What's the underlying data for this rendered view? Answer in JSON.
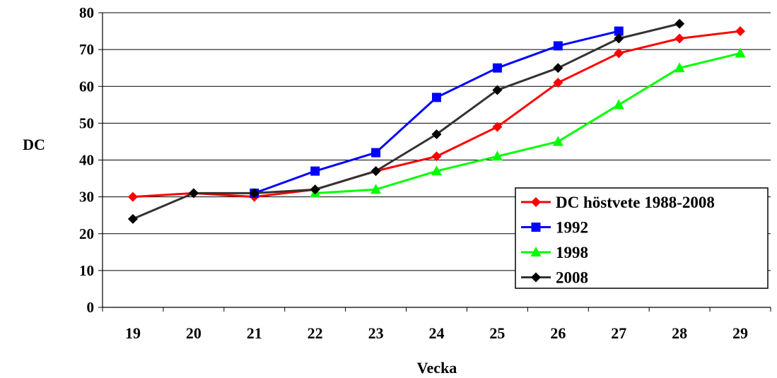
{
  "chart_data": {
    "type": "line",
    "xlabel": "Vecka",
    "ylabel": "DC",
    "ylim": [
      0,
      80
    ],
    "yticks": [
      "0",
      "10",
      "20",
      "30",
      "40",
      "50",
      "60",
      "70",
      "80"
    ],
    "categories": [
      "19",
      "20",
      "21",
      "22",
      "23",
      "24",
      "25",
      "26",
      "27",
      "28",
      "29"
    ],
    "grid": true,
    "legend_position": "bottom-right",
    "series": [
      {
        "name": "DC höstvete 1988-2008",
        "color": "#ff0000",
        "marker": "diamond",
        "values": [
          30,
          31,
          30,
          32,
          37,
          41,
          49,
          61,
          69,
          73,
          75
        ]
      },
      {
        "name": "1992",
        "color": "#0000ff",
        "marker": "square",
        "values": [
          null,
          null,
          31,
          37,
          42,
          57,
          65,
          71,
          75,
          null,
          null
        ]
      },
      {
        "name": "1998",
        "color": "#00ff00",
        "marker": "triangle",
        "values": [
          null,
          null,
          null,
          31,
          32,
          37,
          41,
          45,
          55,
          65,
          69
        ]
      },
      {
        "name": "2008",
        "color": "#333333",
        "marker": "diamond-black",
        "values": [
          24,
          31,
          31,
          32,
          37,
          47,
          59,
          65,
          73,
          77,
          null
        ]
      }
    ]
  }
}
